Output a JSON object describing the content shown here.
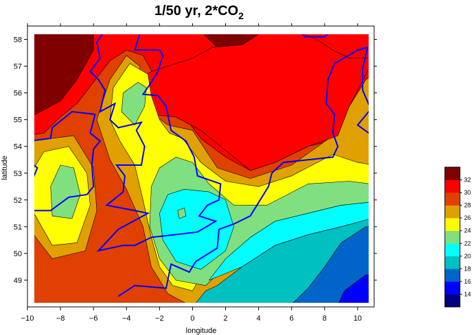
{
  "chart_data": {
    "type": "heatmap",
    "title_main": "1/50 yr, 2*CO",
    "title_sub": "2",
    "xlabel": "longitude",
    "ylabel": "latitude",
    "xlim": [
      -10,
      11
    ],
    "ylim": [
      48,
      58.5
    ],
    "x_ticks": [
      -10,
      -8,
      -6,
      -4,
      -2,
      0,
      2,
      4,
      6,
      8,
      10
    ],
    "x_tick_labels": [
      "−10",
      "−8",
      "−6",
      "−4",
      "−2",
      "0",
      "2",
      "4",
      "6",
      "8",
      "10"
    ],
    "y_ticks": [
      49,
      50,
      51,
      52,
      53,
      54,
      55,
      56,
      57,
      58
    ],
    "y_tick_labels": [
      "49",
      "50",
      "51",
      "52",
      "53",
      "54",
      "55",
      "56",
      "57",
      "58"
    ],
    "colorbar": {
      "levels": [
        14,
        16,
        18,
        20,
        22,
        24,
        26,
        28,
        30,
        32
      ],
      "labels": [
        "14",
        "16",
        "18",
        "20",
        "22",
        "24",
        "26",
        "28",
        "30",
        "32"
      ],
      "colors": [
        "#000080",
        "#0000ff",
        "#0064c8",
        "#00c0c0",
        "#00ffff",
        "#80e080",
        "#ffff00",
        "#e0a000",
        "#e04000",
        "#ff0000",
        "#800000"
      ]
    },
    "coastline_color": "#0000ff",
    "legend_position": "right"
  }
}
